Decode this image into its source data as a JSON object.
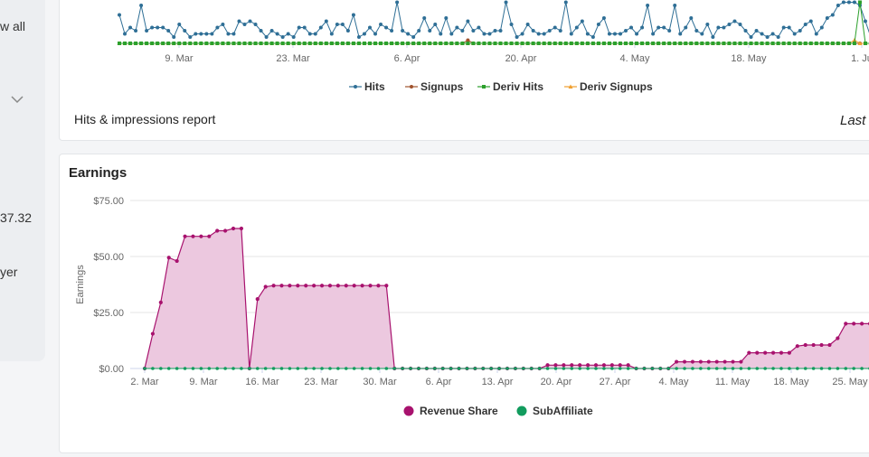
{
  "left_panel": {
    "view_all": "w all",
    "value": "37.32",
    "label": "yer"
  },
  "hits_card": {
    "report_label": "Hits & impressions report",
    "range_label": "Last",
    "chart_data": {
      "type": "line",
      "x_ticks": [
        "9. Mar",
        "23. Mar",
        "6. Apr",
        "20. Apr",
        "4. May",
        "18. May",
        "1. Ju"
      ],
      "legend_position": "bottom",
      "series": [
        {
          "name": "Hits",
          "color": "#2f6f96",
          "values": [
            9,
            3,
            5,
            4,
            12,
            4,
            5,
            5,
            5,
            4,
            2,
            6,
            4,
            2,
            3,
            3,
            3,
            3,
            5,
            6,
            3,
            3,
            7,
            6,
            7,
            6,
            4,
            2,
            4,
            3,
            2,
            3,
            2,
            5,
            5,
            3,
            3,
            5,
            7,
            3,
            6,
            6,
            4,
            9,
            2,
            3,
            5,
            3,
            6,
            5,
            4,
            13,
            4,
            3,
            2,
            4,
            8,
            4,
            6,
            3,
            8,
            3,
            5,
            4,
            7,
            4,
            5,
            3,
            3,
            4,
            4,
            13,
            6,
            2,
            3,
            6,
            4,
            3,
            3,
            4,
            5,
            4,
            13,
            3,
            5,
            7,
            3,
            2,
            6,
            8,
            3,
            3,
            3,
            4,
            5,
            3,
            5,
            12,
            3,
            5,
            5,
            4,
            12,
            3,
            5,
            8,
            4,
            3,
            6,
            2,
            5,
            5,
            6,
            7,
            6,
            4,
            2,
            4,
            3,
            2,
            3,
            2,
            5,
            5,
            3,
            4,
            6,
            7,
            3,
            5,
            8,
            9,
            12,
            13,
            13,
            13,
            12,
            7,
            2
          ]
        },
        {
          "name": "Signups",
          "color": "#a0522d",
          "values": [
            0,
            0,
            0,
            0,
            0,
            0,
            0,
            0,
            0,
            0,
            0,
            0,
            0,
            0,
            0,
            0,
            0,
            0,
            0,
            0,
            0,
            0,
            0,
            0,
            0,
            0,
            0,
            0,
            0,
            0,
            0,
            0,
            0,
            0,
            0,
            0,
            0,
            0,
            0,
            0,
            0,
            0,
            0,
            0,
            0,
            0,
            0,
            0,
            0,
            0,
            0,
            0,
            0,
            0,
            0,
            0,
            0,
            0,
            0,
            0,
            0,
            0,
            0,
            0,
            1,
            0,
            0,
            0,
            0,
            0,
            0,
            0,
            0,
            0,
            0,
            0,
            0,
            0,
            0,
            0,
            0,
            0,
            0,
            0,
            0,
            0,
            0,
            0,
            0,
            0,
            0,
            0,
            0,
            0,
            0,
            0,
            0,
            0,
            0,
            0,
            0,
            0,
            0,
            0,
            0,
            0,
            0,
            0,
            0,
            0,
            0,
            0,
            0,
            0,
            0,
            0,
            0,
            0,
            0,
            0,
            0,
            0,
            0,
            0,
            0,
            0,
            0,
            0,
            0,
            0,
            0,
            0,
            0,
            0,
            0,
            0,
            0,
            0,
            0
          ]
        },
        {
          "name": "Deriv Hits",
          "color": "#2ca02c",
          "values": [
            0,
            0,
            0,
            0,
            0,
            0,
            0,
            0,
            0,
            0,
            0,
            0,
            0,
            0,
            0,
            0,
            0,
            0,
            0,
            0,
            0,
            0,
            0,
            0,
            0,
            0,
            0,
            0,
            0,
            0,
            0,
            0,
            0,
            0,
            0,
            0,
            0,
            0,
            0,
            0,
            0,
            0,
            0,
            0,
            0,
            0,
            0,
            0,
            0,
            0,
            0,
            0,
            0,
            0,
            0,
            0,
            0,
            0,
            0,
            0,
            0,
            0,
            0,
            0,
            0,
            0,
            0,
            0,
            0,
            0,
            0,
            0,
            0,
            0,
            0,
            0,
            0,
            0,
            0,
            0,
            0,
            0,
            0,
            0,
            0,
            0,
            0,
            0,
            0,
            0,
            0,
            0,
            0,
            0,
            0,
            0,
            0,
            0,
            0,
            0,
            0,
            0,
            0,
            0,
            0,
            0,
            0,
            0,
            0,
            0,
            0,
            0,
            0,
            0,
            0,
            0,
            0,
            0,
            0,
            0,
            0,
            0,
            0,
            0,
            0,
            0,
            0,
            0,
            0,
            0,
            0,
            0,
            0,
            0,
            0,
            0,
            13,
            0,
            0
          ]
        },
        {
          "name": "Deriv Signups",
          "color": "#f0a030",
          "values": [
            0,
            0,
            0,
            0,
            0,
            0,
            0,
            0,
            0,
            0,
            0,
            0,
            0,
            0,
            0,
            0,
            0,
            0,
            0,
            0,
            0,
            0,
            0,
            0,
            0,
            0,
            0,
            0,
            0,
            0,
            0,
            0,
            0,
            0,
            0,
            0,
            0,
            0,
            0,
            0,
            0,
            0,
            0,
            0,
            0,
            0,
            0,
            0,
            0,
            0,
            0,
            0,
            0,
            0,
            0,
            0,
            0,
            0,
            0,
            0,
            0,
            0,
            0,
            0,
            0,
            0,
            0,
            0,
            0,
            0,
            0,
            0,
            0,
            0,
            0,
            0,
            0,
            0,
            0,
            0,
            0,
            0,
            0,
            0,
            0,
            0,
            0,
            0,
            0,
            0,
            0,
            0,
            0,
            0,
            0,
            0,
            0,
            0,
            0,
            0,
            0,
            0,
            0,
            0,
            0,
            0,
            0,
            0,
            0,
            0,
            0,
            0,
            0,
            0,
            0,
            0,
            0,
            0,
            0,
            0,
            0,
            0,
            0,
            0,
            0,
            0,
            0,
            0,
            0,
            0,
            0,
            0,
            0,
            0,
            0,
            1,
            0,
            0,
            0
          ]
        }
      ]
    }
  },
  "earnings_card": {
    "title": "Earnings",
    "chart_data": {
      "type": "area",
      "title": "Earnings",
      "ylabel": "Earnings",
      "ylim": [
        0,
        75
      ],
      "y_ticks": [
        "$0.00",
        "$25.00",
        "$50.00",
        "$75.00"
      ],
      "x_ticks": [
        "2. Mar",
        "9. Mar",
        "16. Mar",
        "23. Mar",
        "30. Mar",
        "6. Apr",
        "13. Apr",
        "20. Apr",
        "27. Apr",
        "4. May",
        "11. May",
        "18. May",
        "25. May"
      ],
      "grid": true,
      "legend_position": "bottom",
      "series": [
        {
          "name": "Revenue Share",
          "color": "#a8126e",
          "fill": "#ecc8df",
          "values": [
            0,
            15.5,
            29.5,
            49.5,
            48,
            59,
            59,
            59,
            59,
            61.5,
            61.5,
            62.5,
            62.5,
            0,
            31,
            36.5,
            37,
            37,
            37,
            37,
            37,
            37,
            37,
            37,
            37,
            37,
            37,
            37,
            37,
            37,
            37,
            0,
            0,
            0,
            0,
            0,
            0,
            0,
            0,
            0,
            0,
            0,
            0,
            0,
            0,
            0,
            0,
            0,
            0,
            0,
            1.5,
            1.5,
            1.5,
            1.5,
            1.5,
            1.5,
            1.5,
            1.5,
            1.5,
            1.5,
            1.5,
            0,
            0,
            0,
            0,
            0,
            3,
            3,
            3,
            3,
            3,
            3,
            3,
            3,
            3,
            7,
            7,
            7,
            7,
            7,
            7,
            10,
            10.5,
            10.5,
            10.5,
            10.5,
            13.5,
            20,
            20,
            20,
            20
          ]
        },
        {
          "name": "SubAffiliate",
          "color": "#129c5e",
          "values": [
            0,
            0,
            0,
            0,
            0,
            0,
            0,
            0,
            0,
            0,
            0,
            0,
            0,
            0,
            0,
            0,
            0,
            0,
            0,
            0,
            0,
            0,
            0,
            0,
            0,
            0,
            0,
            0,
            0,
            0,
            0,
            0,
            0,
            0,
            0,
            0,
            0,
            0,
            0,
            0,
            0,
            0,
            0,
            0,
            0,
            0,
            0,
            0,
            0,
            0,
            0,
            0,
            0,
            0,
            0,
            0,
            0,
            0,
            0,
            0,
            0,
            0,
            0,
            0,
            0,
            0,
            0,
            0,
            0,
            0,
            0,
            0,
            0,
            0,
            0,
            0,
            0,
            0,
            0,
            0,
            0,
            0,
            0,
            0,
            0,
            0,
            0,
            0,
            0,
            0,
            0
          ]
        }
      ]
    }
  }
}
